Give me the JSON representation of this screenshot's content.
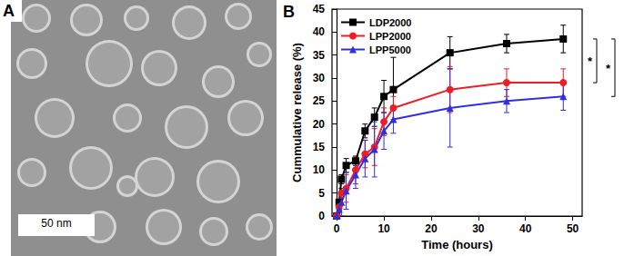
{
  "panels": {
    "A": {
      "label": "A",
      "scale_bar": "50 nm"
    },
    "B": {
      "label": "B"
    }
  },
  "chart_data": {
    "type": "line",
    "x_label": "Time (hours)",
    "y_label": "Cummulative release (%)",
    "xlim": [
      -1,
      52
    ],
    "xticks": [
      0,
      10,
      20,
      30,
      40,
      50
    ],
    "ylim": [
      0,
      45
    ],
    "yticks": [
      0,
      5,
      10,
      15,
      20,
      25,
      30,
      35,
      40,
      45
    ],
    "grid": false,
    "legend": "upper left",
    "x": [
      0,
      0.5,
      1,
      2,
      4,
      6,
      8,
      10,
      12,
      24,
      36,
      48
    ],
    "series": [
      {
        "name": "LDP2000",
        "color": "#000000",
        "marker": "square",
        "values": [
          0,
          3,
          8,
          11,
          12,
          18.5,
          21.5,
          26,
          27.5,
          35.5,
          37.5,
          38.5
        ],
        "errors": [
          0,
          0.5,
          1,
          1.5,
          1,
          1.5,
          2,
          3.5,
          7,
          3.5,
          2,
          3
        ]
      },
      {
        "name": "LPP2000",
        "color": "#ee1c24",
        "marker": "circle",
        "values": [
          0,
          2,
          5,
          6,
          10,
          13.5,
          15,
          20.5,
          23.5,
          27.5,
          29,
          29
        ],
        "errors": [
          0,
          0.5,
          1,
          3,
          3,
          3,
          4,
          3,
          2.5,
          5,
          3,
          3
        ]
      },
      {
        "name": "LPP5000",
        "color": "#2f2fe0",
        "marker": "triangle",
        "values": [
          0,
          1.5,
          3,
          5.5,
          9,
          12.5,
          14.5,
          18.5,
          21,
          23.5,
          25,
          26
        ],
        "errors": [
          0,
          0.5,
          3,
          4,
          3,
          4,
          6,
          4,
          3,
          8.5,
          2.5,
          3
        ]
      }
    ],
    "significance": [
      {
        "label": "*",
        "between": [
          "LDP2000",
          "LPP2000"
        ]
      },
      {
        "label": "*",
        "between": [
          "LDP2000",
          "LPP5000"
        ]
      }
    ]
  }
}
